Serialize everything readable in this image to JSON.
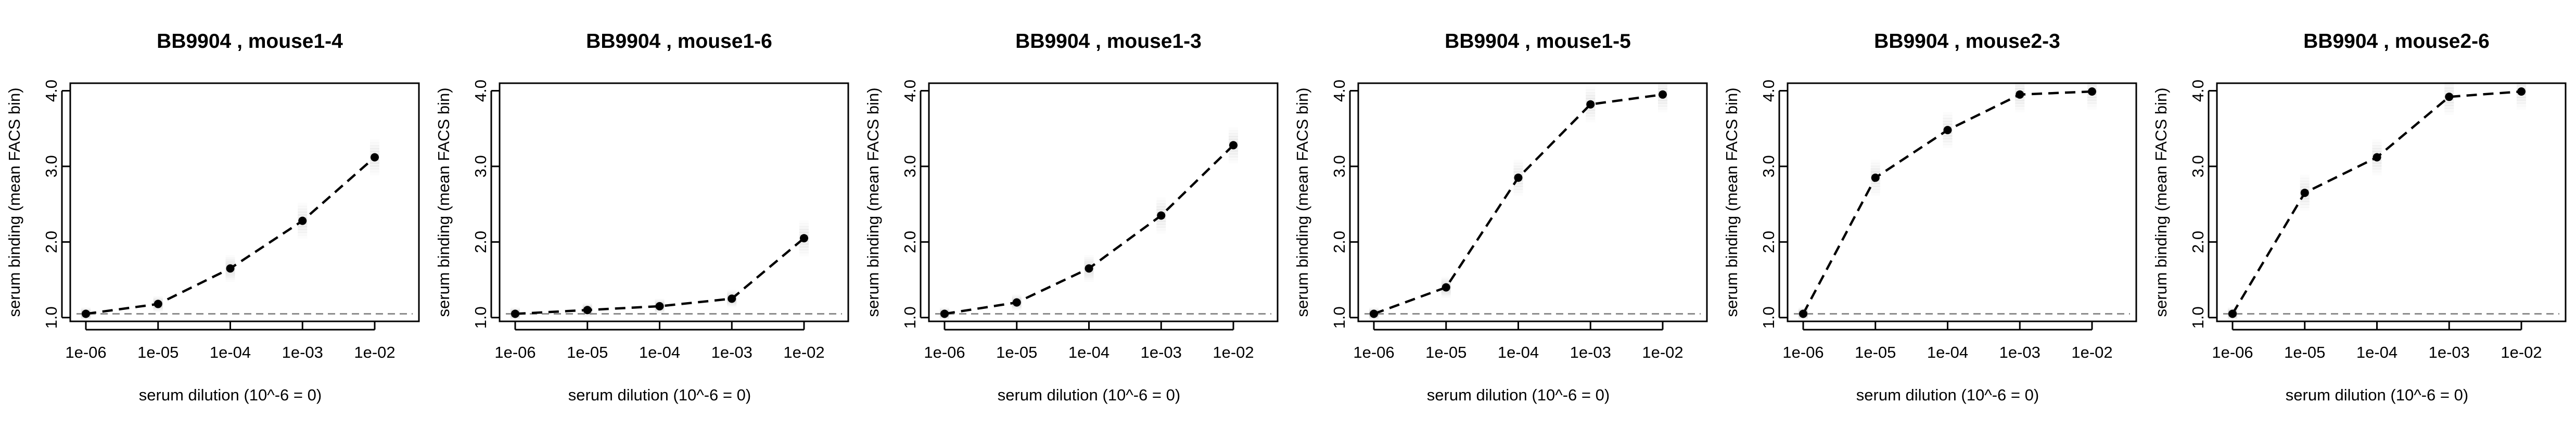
{
  "figure": {
    "background": "#ffffff",
    "line_color": "#000000",
    "baseline_color": "#8c8c8c",
    "cloud_color": "#b4b4b4"
  },
  "chart_data": [
    {
      "type": "line",
      "title": "BB9904 , mouse1-4",
      "xlabel": "serum dilution (10^-6 = 0)",
      "ylabel": "serum binding (mean FACS bin)",
      "x": [
        1e-06,
        1e-05,
        0.0001,
        0.001,
        0.01
      ],
      "x_tick_labels": [
        "1e-06",
        "1e-05",
        "1e-04",
        "1e-03",
        "1e-02"
      ],
      "x_scale": "log",
      "ylim": [
        0.95,
        4.1
      ],
      "y_ticks": [
        1.0,
        2.0,
        3.0,
        4.0
      ],
      "y_tick_labels": [
        "1.0",
        "2.0",
        "3.0",
        "4.0"
      ],
      "series": [
        {
          "values": [
            1.05,
            1.18,
            1.65,
            2.28,
            3.12
          ],
          "line_style": "dashed",
          "marker": "point"
        }
      ],
      "baseline": 1.05,
      "grid": false
    },
    {
      "type": "line",
      "title": "BB9904 , mouse1-6",
      "xlabel": "serum dilution (10^-6 = 0)",
      "ylabel": "serum binding (mean FACS bin)",
      "x": [
        1e-06,
        1e-05,
        0.0001,
        0.001,
        0.01
      ],
      "x_tick_labels": [
        "1e-06",
        "1e-05",
        "1e-04",
        "1e-03",
        "1e-02"
      ],
      "x_scale": "log",
      "ylim": [
        0.95,
        4.1
      ],
      "y_ticks": [
        1.0,
        2.0,
        3.0,
        4.0
      ],
      "y_tick_labels": [
        "1.0",
        "2.0",
        "3.0",
        "4.0"
      ],
      "series": [
        {
          "values": [
            1.05,
            1.1,
            1.15,
            1.25,
            2.05
          ],
          "line_style": "dashed",
          "marker": "point"
        }
      ],
      "baseline": 1.05,
      "grid": false
    },
    {
      "type": "line",
      "title": "BB9904 , mouse1-3",
      "xlabel": "serum dilution (10^-6 = 0)",
      "ylabel": "serum binding (mean FACS bin)",
      "x": [
        1e-06,
        1e-05,
        0.0001,
        0.001,
        0.01
      ],
      "x_tick_labels": [
        "1e-06",
        "1e-05",
        "1e-04",
        "1e-03",
        "1e-02"
      ],
      "x_scale": "log",
      "ylim": [
        0.95,
        4.1
      ],
      "y_ticks": [
        1.0,
        2.0,
        3.0,
        4.0
      ],
      "y_tick_labels": [
        "1.0",
        "2.0",
        "3.0",
        "4.0"
      ],
      "series": [
        {
          "values": [
            1.05,
            1.2,
            1.65,
            2.35,
            3.28
          ],
          "line_style": "dashed",
          "marker": "point"
        }
      ],
      "baseline": 1.05,
      "grid": false
    },
    {
      "type": "line",
      "title": "BB9904 , mouse1-5",
      "xlabel": "serum dilution (10^-6 = 0)",
      "ylabel": "serum binding (mean FACS bin)",
      "x": [
        1e-06,
        1e-05,
        0.0001,
        0.001,
        0.01
      ],
      "x_tick_labels": [
        "1e-06",
        "1e-05",
        "1e-04",
        "1e-03",
        "1e-02"
      ],
      "x_scale": "log",
      "ylim": [
        0.95,
        4.1
      ],
      "y_ticks": [
        1.0,
        2.0,
        3.0,
        4.0
      ],
      "y_tick_labels": [
        "1.0",
        "2.0",
        "3.0",
        "4.0"
      ],
      "series": [
        {
          "values": [
            1.05,
            1.4,
            2.85,
            3.82,
            3.95
          ],
          "line_style": "dashed",
          "marker": "point"
        }
      ],
      "baseline": 1.05,
      "grid": false
    },
    {
      "type": "line",
      "title": "BB9904 , mouse2-3",
      "xlabel": "serum dilution (10^-6 = 0)",
      "ylabel": "serum binding (mean FACS bin)",
      "x": [
        1e-06,
        1e-05,
        0.0001,
        0.001,
        0.01
      ],
      "x_tick_labels": [
        "1e-06",
        "1e-05",
        "1e-04",
        "1e-03",
        "1e-02"
      ],
      "x_scale": "log",
      "ylim": [
        0.95,
        4.1
      ],
      "y_ticks": [
        1.0,
        2.0,
        3.0,
        4.0
      ],
      "y_tick_labels": [
        "1.0",
        "2.0",
        "3.0",
        "4.0"
      ],
      "series": [
        {
          "values": [
            1.05,
            2.85,
            3.48,
            3.95,
            3.99
          ],
          "line_style": "dashed",
          "marker": "point"
        }
      ],
      "baseline": 1.05,
      "grid": false
    },
    {
      "type": "line",
      "title": "BB9904 , mouse2-6",
      "xlabel": "serum dilution (10^-6 = 0)",
      "ylabel": "serum binding (mean FACS bin)",
      "x": [
        1e-06,
        1e-05,
        0.0001,
        0.001,
        0.01
      ],
      "x_tick_labels": [
        "1e-06",
        "1e-05",
        "1e-04",
        "1e-03",
        "1e-02"
      ],
      "x_scale": "log",
      "ylim": [
        0.95,
        4.1
      ],
      "y_ticks": [
        1.0,
        2.0,
        3.0,
        4.0
      ],
      "y_tick_labels": [
        "1.0",
        "2.0",
        "3.0",
        "4.0"
      ],
      "series": [
        {
          "values": [
            1.05,
            2.65,
            3.12,
            3.92,
            3.99
          ],
          "line_style": "dashed",
          "marker": "point"
        }
      ],
      "baseline": 1.05,
      "grid": false
    }
  ]
}
